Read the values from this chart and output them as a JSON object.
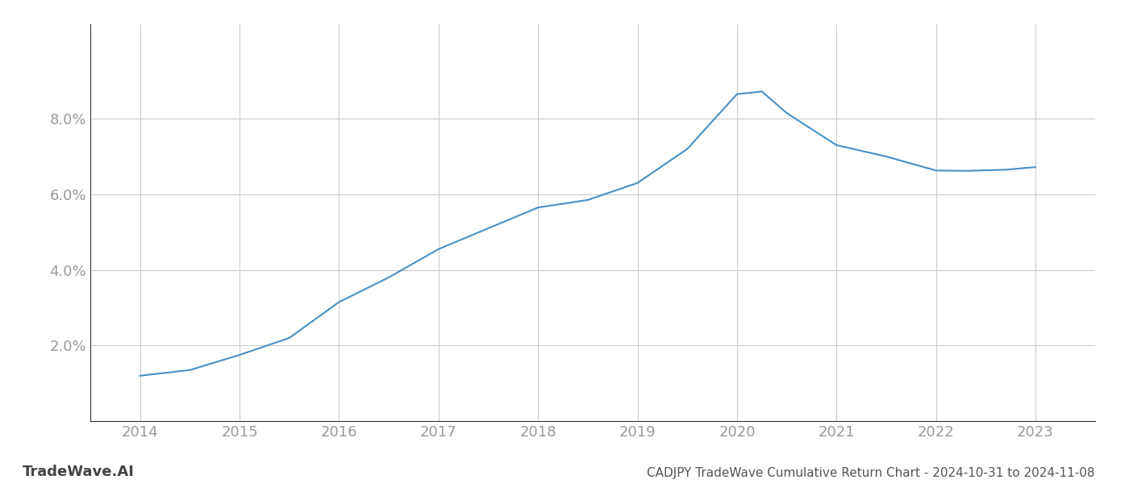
{
  "x": [
    2014,
    2014.5,
    2015,
    2015.5,
    2016,
    2016.5,
    2017,
    2017.5,
    2018,
    2018.5,
    2019,
    2019.5,
    2020,
    2020.25,
    2020.5,
    2021,
    2021.5,
    2022,
    2022.3,
    2022.7,
    2023
  ],
  "y": [
    1.2,
    1.35,
    1.75,
    2.2,
    3.15,
    3.8,
    4.55,
    5.1,
    5.65,
    5.85,
    6.3,
    7.2,
    8.65,
    8.72,
    8.15,
    7.3,
    7.0,
    6.63,
    6.62,
    6.65,
    6.72
  ],
  "line_color": "#4a90c4",
  "line_width": 1.5,
  "title": "CADJPY TradeWave Cumulative Return Chart - 2024-10-31 to 2024-11-08",
  "watermark": "TradeWave.AI",
  "xlim": [
    2013.5,
    2023.6
  ],
  "ylim": [
    0.0,
    10.5
  ],
  "yticks": [
    2.0,
    4.0,
    6.0,
    8.0
  ],
  "xticks": [
    2014,
    2015,
    2016,
    2017,
    2018,
    2019,
    2020,
    2021,
    2022,
    2023
  ],
  "grid_color": "#cccccc",
  "background_color": "#ffffff",
  "tick_color": "#999999",
  "title_color": "#555555",
  "watermark_color": "#444444",
  "title_fontsize": 11,
  "tick_fontsize": 13,
  "watermark_fontsize": 13
}
